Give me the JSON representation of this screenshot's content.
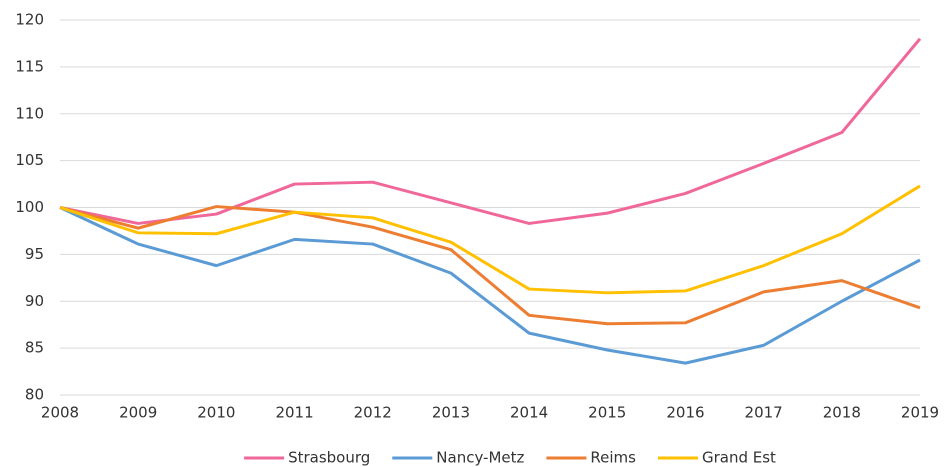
{
  "chart_data": {
    "type": "line",
    "x": [
      2008,
      2009,
      2010,
      2011,
      2012,
      2013,
      2014,
      2015,
      2016,
      2017,
      2018,
      2019
    ],
    "series": [
      {
        "name": "Strasbourg",
        "color": "#f0679a",
        "values": [
          100,
          98.3,
          99.3,
          102.5,
          102.7,
          100.5,
          98.3,
          99.4,
          101.5,
          104.7,
          108,
          118
        ]
      },
      {
        "name": "Nancy-Metz",
        "color": "#5b9bd5",
        "values": [
          100,
          96.1,
          93.8,
          96.6,
          96.1,
          93,
          86.6,
          84.8,
          83.4,
          85.3,
          90,
          94.4
        ]
      },
      {
        "name": "Reims",
        "color": "#ed7d31",
        "values": [
          100,
          97.8,
          100.1,
          99.5,
          97.9,
          95.5,
          88.5,
          87.6,
          87.7,
          91,
          92.2,
          89.3
        ]
      },
      {
        "name": "Grand Est",
        "color": "#ffc000",
        "values": [
          100,
          97.3,
          97.2,
          99.5,
          98.9,
          96.3,
          91.3,
          90.9,
          91.1,
          93.8,
          97.2,
          102.3
        ]
      }
    ],
    "xlim": [
      2008,
      2019
    ],
    "xticks": [
      2008,
      2009,
      2010,
      2011,
      2012,
      2013,
      2014,
      2015,
      2016,
      2017,
      2018,
      2019
    ],
    "ylim": [
      80,
      120
    ],
    "yticks": [
      80,
      85,
      90,
      95,
      100,
      105,
      110,
      115,
      120
    ],
    "grid": true,
    "legend": "bottom"
  }
}
